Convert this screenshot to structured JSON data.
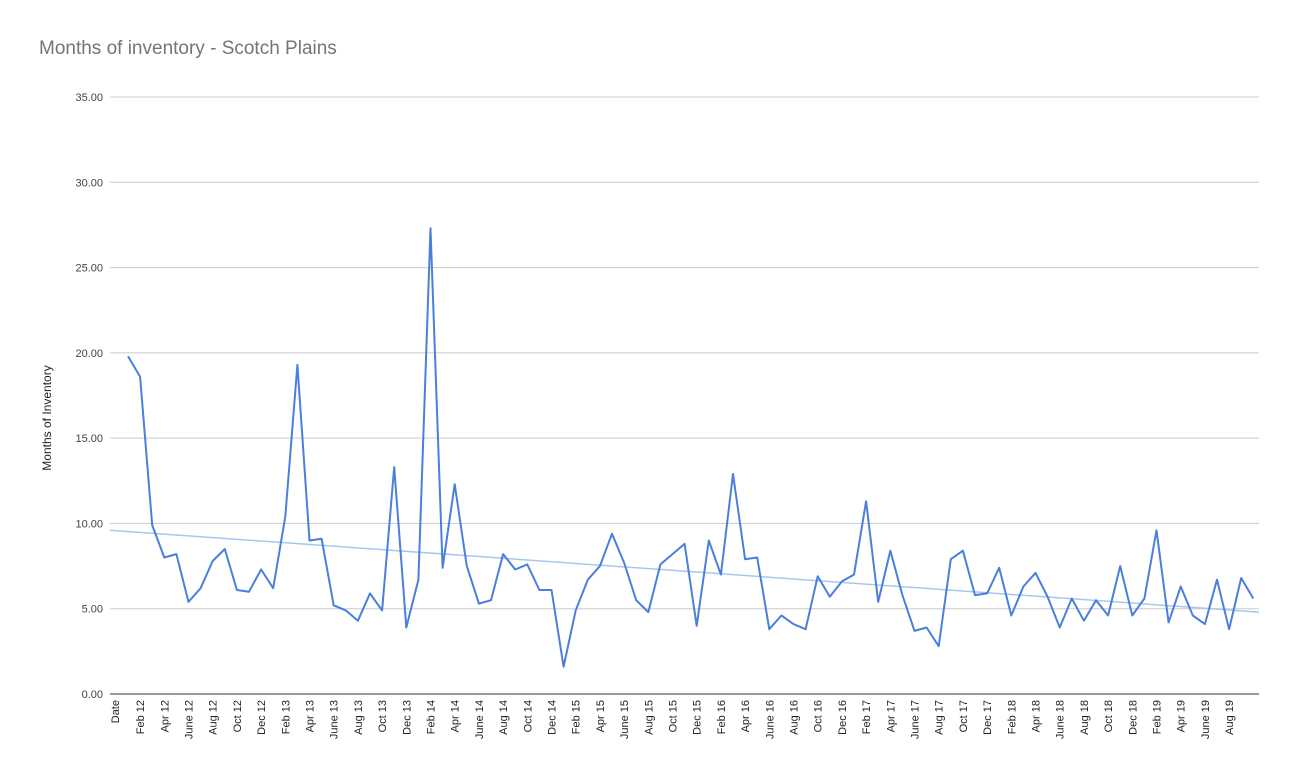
{
  "chart_data": {
    "type": "line",
    "title": "Months of inventory - Scotch Plains",
    "ylabel": "Months of Inventory",
    "xlabel": "",
    "ylim": [
      0,
      35
    ],
    "yticks": [
      "0.00",
      "5.00",
      "10.00",
      "15.00",
      "20.00",
      "25.00",
      "30.00",
      "35.00"
    ],
    "grid": true,
    "legend": "none",
    "x_tick_labels": [
      "Date",
      "Feb 12",
      "Apr 12",
      "June 12",
      "Aug 12",
      "Oct 12",
      "Dec 12",
      "Feb 13",
      "Apr 13",
      "June 13",
      "Aug 13",
      "Oct 13",
      "Dec 13",
      "Feb 14",
      "Apr 14",
      "June 14",
      "Aug 14",
      "Oct 14",
      "Dec 14",
      "Feb 15",
      "Apr 15",
      "June 15",
      "Aug 15",
      "Oct 15",
      "Dec 15",
      "Feb 16",
      "Apr 16",
      "June 16",
      "Aug 16",
      "Oct 16",
      "Dec 16",
      "Feb 17",
      "Apr 17",
      "June 17",
      "Aug 17",
      "Oct 17",
      "Dec 17",
      "Feb 18",
      "Apr 18",
      "June 18",
      "Aug 18",
      "Oct 18",
      "Dec 18",
      "Feb 19",
      "Apr 19",
      "June 19",
      "Aug 19"
    ],
    "series": [
      {
        "color": "#4a7fdc",
        "values": [
          19.8,
          18.6,
          9.9,
          8.0,
          8.2,
          5.4,
          6.2,
          7.8,
          8.5,
          6.1,
          6.0,
          7.3,
          6.2,
          10.4,
          19.3,
          9.0,
          9.1,
          5.2,
          4.9,
          4.3,
          5.9,
          4.9,
          13.3,
          3.9,
          6.7,
          27.3,
          7.4,
          12.3,
          7.5,
          5.3,
          5.5,
          8.2,
          7.3,
          7.6,
          6.1,
          6.1,
          1.6,
          4.9,
          6.7,
          7.5,
          9.4,
          7.7,
          5.5,
          4.8,
          7.6,
          8.2,
          8.8,
          4.0,
          9.0,
          7.0,
          12.9,
          7.9,
          8.0,
          3.8,
          4.6,
          4.1,
          3.8,
          6.9,
          5.7,
          6.6,
          7.0,
          11.3,
          5.4,
          8.4,
          5.8,
          3.7,
          3.9,
          2.8,
          7.9,
          8.4,
          5.8,
          5.9,
          7.4,
          4.6,
          6.3,
          7.1,
          5.7,
          3.9,
          5.6,
          4.3,
          5.5,
          4.6,
          7.5,
          4.6,
          5.6,
          9.6,
          4.2,
          6.3,
          4.6,
          4.1,
          6.7,
          3.8,
          6.8,
          5.6
        ]
      }
    ],
    "trendline": {
      "color": "#a8c6ef",
      "start": 9.6,
      "end": 4.8
    }
  }
}
